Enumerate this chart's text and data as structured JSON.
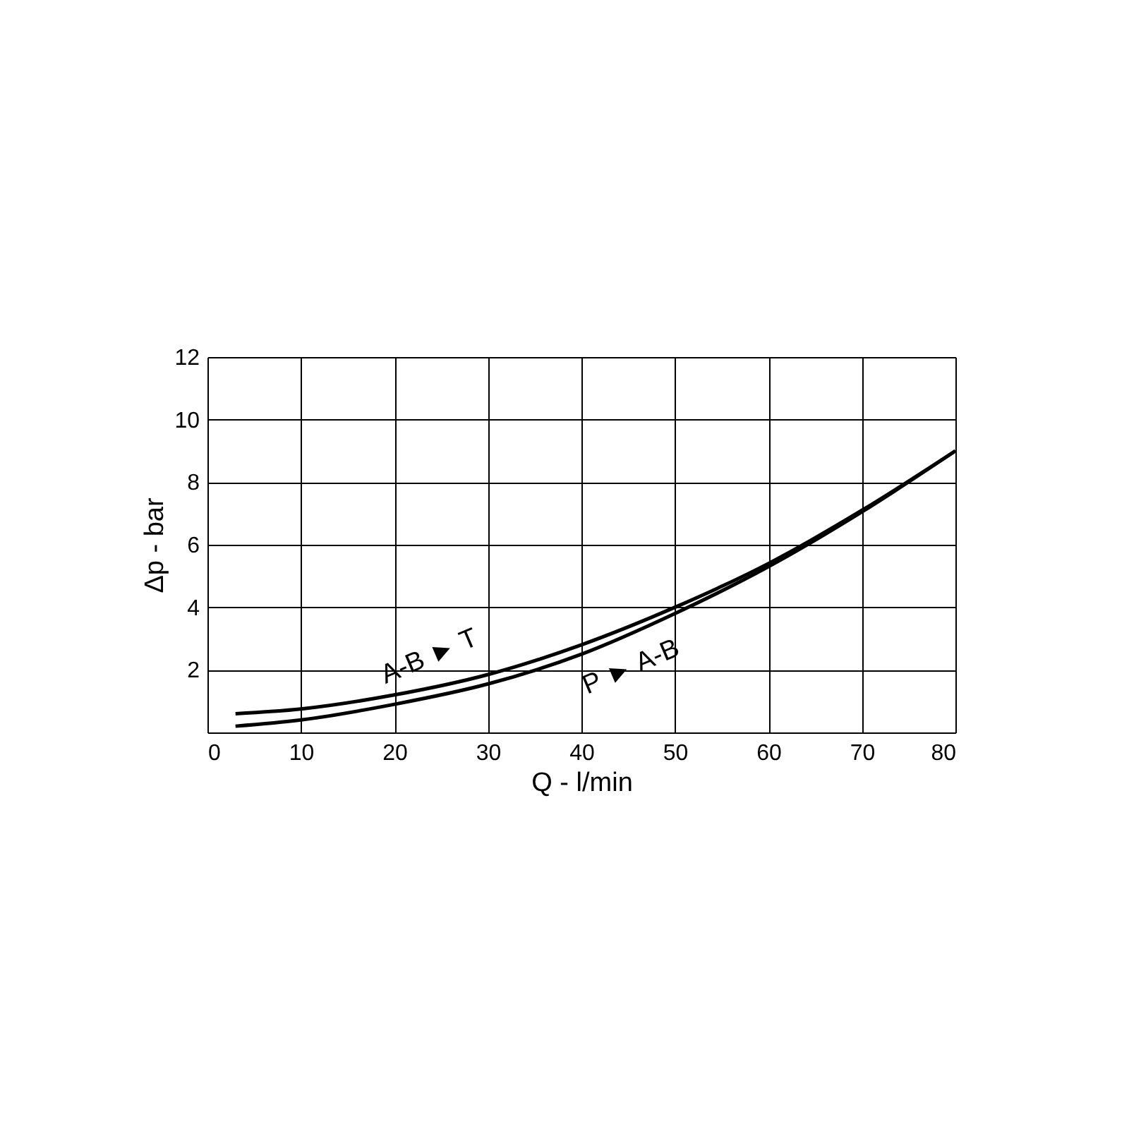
{
  "chart_data": {
    "type": "line",
    "xlabel": "Q - l/min",
    "ylabel": "Δp - bar",
    "x": [
      3,
      10,
      20,
      30,
      40,
      50,
      60,
      70,
      80
    ],
    "series": [
      {
        "name": "A-B ► T",
        "color": "#000000",
        "values": [
          0.6,
          0.75,
          1.2,
          1.85,
          2.8,
          4.0,
          5.4,
          7.1,
          9.0
        ]
      },
      {
        "name": "P ► A-B",
        "color": "#000000",
        "values": [
          0.2,
          0.4,
          0.9,
          1.55,
          2.5,
          3.8,
          5.3,
          7.05,
          9.0
        ]
      }
    ],
    "xlim": [
      0,
      80
    ],
    "ylim": [
      0,
      12
    ],
    "xticks": [
      0,
      10,
      20,
      30,
      40,
      50,
      60,
      70,
      80
    ],
    "yticks": [
      {
        "value": 0,
        "label": null
      },
      2,
      4,
      6,
      8,
      10,
      12
    ],
    "grid": true,
    "legend": false,
    "marker": "none",
    "line_style": "solid"
  }
}
